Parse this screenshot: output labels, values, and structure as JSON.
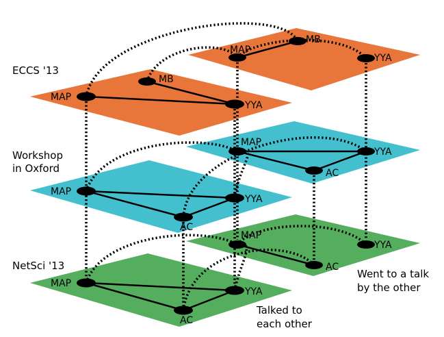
{
  "layers": [
    {
      "label": "ECCS '13",
      "color": "#e8753a"
    },
    {
      "label_lines": [
        "Workshop",
        "in Oxford"
      ],
      "color": "#43bfcd"
    },
    {
      "label": "NetSci '13",
      "color": "#55ad5e"
    }
  ],
  "nodes": {
    "map": "MAP",
    "mb": "MB",
    "yya": "YYA",
    "ac": "AC"
  },
  "legend": {
    "back": [
      "Went to a talk",
      "by the other"
    ],
    "front": [
      "Talked to",
      "each other"
    ]
  }
}
